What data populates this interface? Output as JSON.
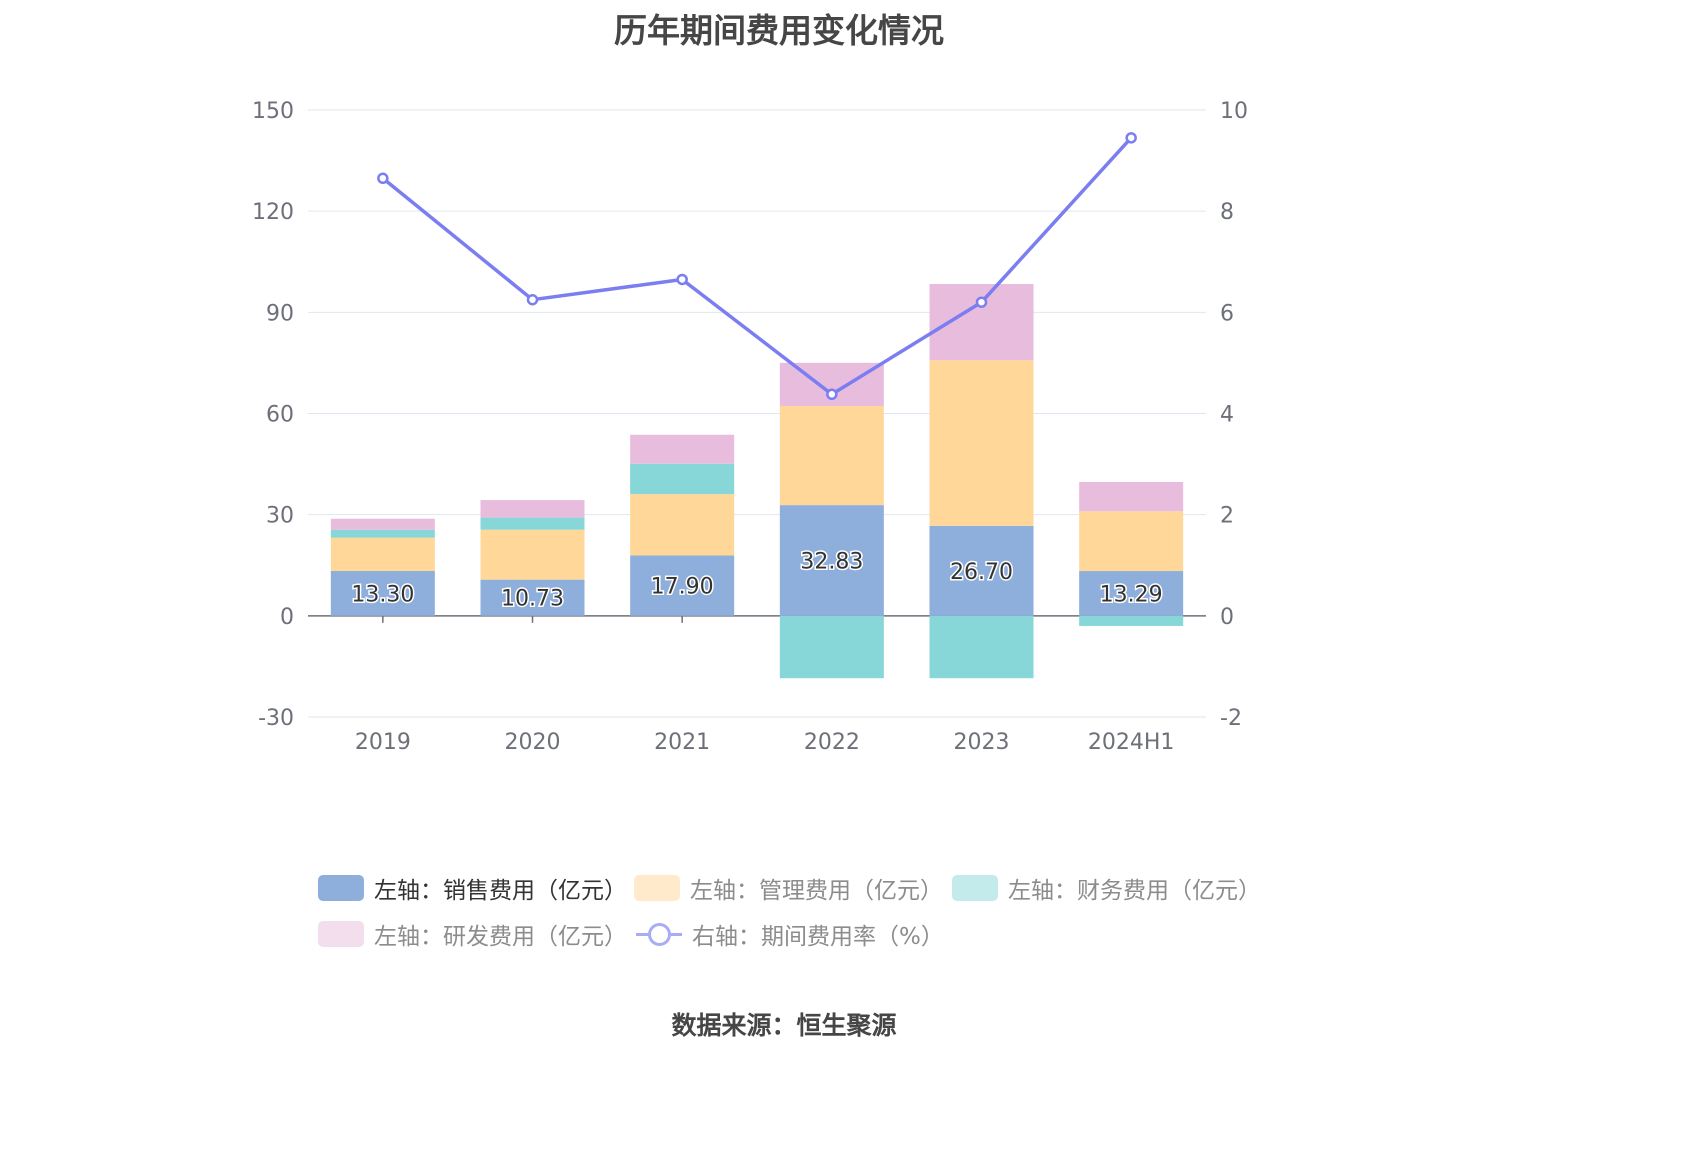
{
  "title": "历年期间费用变化情况",
  "source": "数据来源：恒生聚源",
  "chart_data": {
    "type": "bar",
    "stacked": true,
    "categories": [
      "2019",
      "2020",
      "2021",
      "2022",
      "2023",
      "2024H1"
    ],
    "left_axis": {
      "min": -30,
      "max": 150,
      "ticks": [
        -30,
        0,
        30,
        60,
        90,
        120,
        150
      ]
    },
    "right_axis": {
      "min": -2,
      "max": 10,
      "ticks": [
        -2,
        0,
        2,
        4,
        6,
        8,
        10
      ]
    },
    "grid": true,
    "legend_position": "bottom",
    "series": [
      {
        "name": "左轴：销售费用（亿元）",
        "type": "bar",
        "axis": "left",
        "color": "#8eaedb",
        "values": [
          13.3,
          10.73,
          17.9,
          32.83,
          26.7,
          13.29
        ],
        "labels": [
          "13.30",
          "10.73",
          "17.90",
          "32.83",
          "26.70",
          "13.29"
        ]
      },
      {
        "name": "左轴：管理费用（亿元）",
        "type": "bar",
        "axis": "left",
        "color": "#ffd899",
        "values": [
          9.9,
          14.8,
          18.2,
          29.4,
          49.1,
          17.7
        ]
      },
      {
        "name": "左轴：财务费用（亿元）",
        "type": "bar",
        "axis": "left",
        "color": "#87d6d8",
        "values": [
          2.3,
          3.6,
          9.0,
          -18.5,
          -18.5,
          -3.0
        ]
      },
      {
        "name": "左轴：研发费用（亿元）",
        "type": "bar",
        "axis": "left",
        "color": "#e8bcdc",
        "values": [
          3.3,
          5.2,
          8.6,
          12.8,
          22.6,
          8.7
        ]
      },
      {
        "name": "右轴：期间费用率（%）",
        "type": "line",
        "axis": "right",
        "color": "#7a7ef0",
        "values": [
          8.65,
          6.25,
          6.65,
          4.38,
          6.2,
          9.45
        ]
      }
    ]
  }
}
